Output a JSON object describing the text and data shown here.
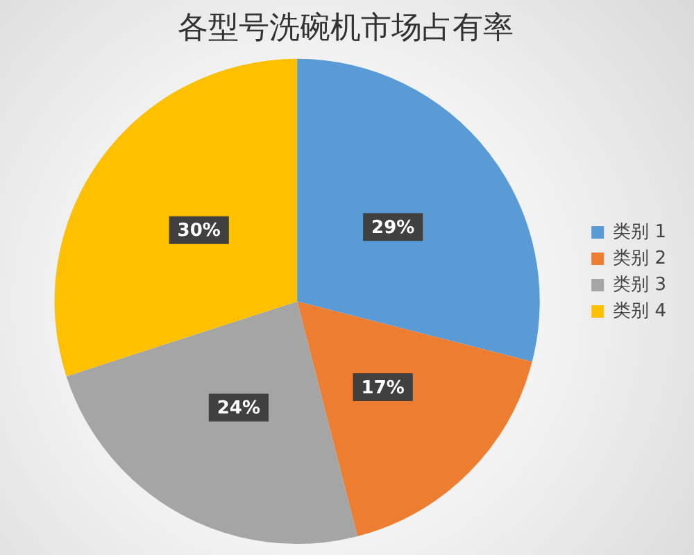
{
  "chart_data": {
    "type": "pie",
    "title": "各型号洗碗机市场占有率",
    "categories": [
      "类别 1",
      "类别 2",
      "类别 3",
      "类别 4"
    ],
    "values": [
      29,
      17,
      24,
      30
    ],
    "colors": [
      "#5b9bd5",
      "#ed7d31",
      "#a5a5a5",
      "#ffc000"
    ],
    "value_labels": [
      "29%",
      "17%",
      "24%",
      "30%"
    ],
    "legend": "right"
  }
}
